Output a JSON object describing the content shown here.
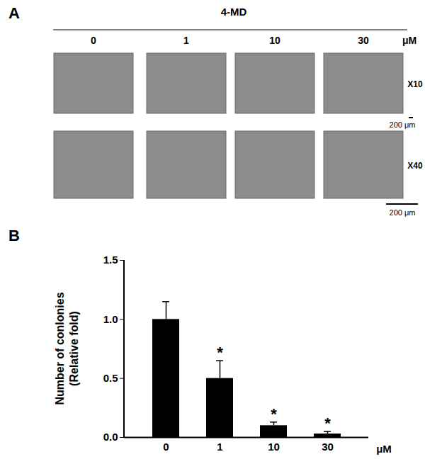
{
  "panel_a": {
    "panel_label": "A",
    "treatment": "4-MD",
    "concentrations": [
      "0",
      "1",
      "10",
      "30"
    ],
    "unit": "μM",
    "rows": [
      {
        "magnification": "X10",
        "scale_bar": "200 μm"
      },
      {
        "magnification": "X40",
        "scale_bar": "200 μm"
      }
    ]
  },
  "chart_data": {
    "type": "bar",
    "panel_label": "B",
    "categories": [
      "0",
      "1",
      "10",
      "30"
    ],
    "x_unit": "μM",
    "values": [
      1.0,
      0.5,
      0.1,
      0.03
    ],
    "errors": [
      0.15,
      0.15,
      0.03,
      0.02
    ],
    "significance": [
      null,
      "*",
      "*",
      "*"
    ],
    "ylabel": [
      "Number of conlonies",
      "(Relative fold)"
    ],
    "color": "#000000",
    "ylim": [
      0,
      1.5
    ],
    "yticks": [
      {
        "value": 0,
        "label": "0.0"
      },
      {
        "value": 0.5,
        "label": "0.5"
      },
      {
        "value": 1,
        "label": "1.0"
      },
      {
        "value": 1.5,
        "label": "1.5"
      }
    ],
    "grid": false
  }
}
